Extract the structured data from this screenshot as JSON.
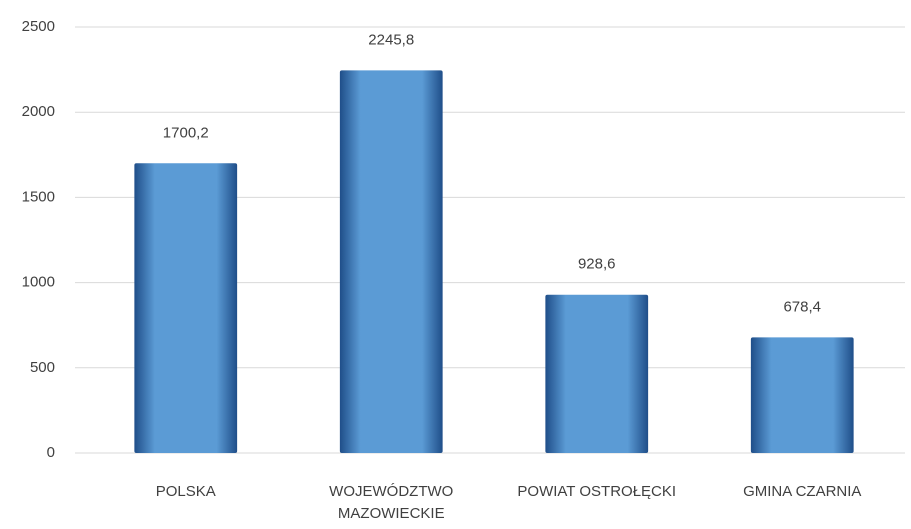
{
  "chart_data": {
    "type": "bar",
    "categories": [
      "POLSKA",
      "WOJEWÓDZTWO MAZOWIECKIE",
      "POWIAT OSTROŁĘCKI",
      "GMINA CZARNIA"
    ],
    "values": [
      1700.2,
      2245.8,
      928.6,
      678.4
    ],
    "value_labels": [
      "1700,2",
      "2245,8",
      "928,6",
      "678,4"
    ],
    "color": "#5b9bd5",
    "ylim": [
      0,
      2500
    ],
    "yticks": [
      0,
      500,
      1000,
      1500,
      2000,
      2500
    ],
    "grid": true
  }
}
